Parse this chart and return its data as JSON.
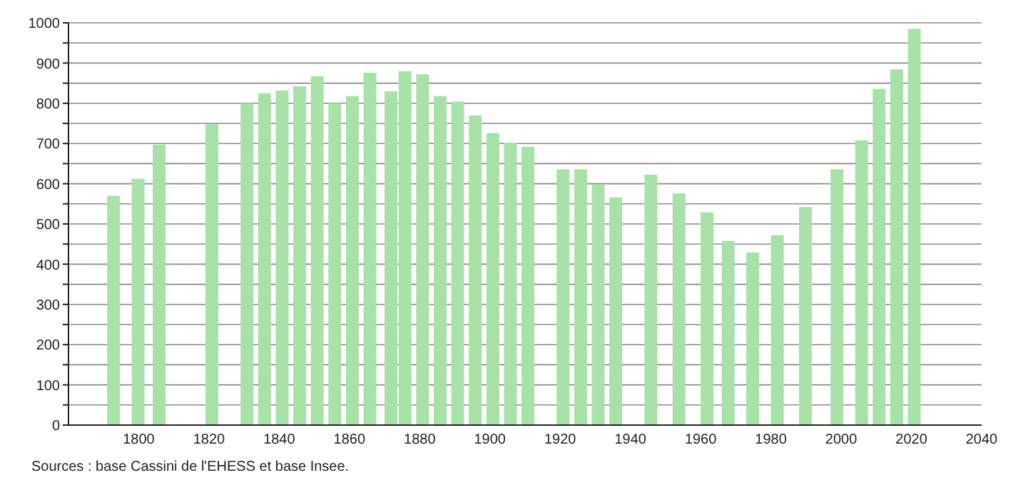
{
  "chart_data": {
    "type": "bar",
    "x": [
      1793,
      1800,
      1806,
      1821,
      1831,
      1836,
      1841,
      1846,
      1851,
      1856,
      1861,
      1866,
      1872,
      1876,
      1881,
      1886,
      1891,
      1896,
      1901,
      1906,
      1911,
      1921,
      1926,
      1931,
      1936,
      1946,
      1954,
      1962,
      1968,
      1975,
      1982,
      1990,
      1999,
      2006,
      2011,
      2016,
      2021
    ],
    "values": [
      570,
      612,
      697,
      748,
      800,
      825,
      832,
      842,
      867,
      800,
      818,
      876,
      830,
      880,
      872,
      818,
      804,
      770,
      726,
      702,
      692,
      636,
      636,
      598,
      566,
      623,
      576,
      529,
      458,
      429,
      472,
      542,
      636,
      708,
      836,
      884,
      985
    ],
    "color": "#a8e2a8",
    "xlim": [
      1780,
      2040
    ],
    "xticks": [
      1800,
      1820,
      1840,
      1860,
      1880,
      1900,
      1920,
      1940,
      1960,
      1980,
      2000,
      2020,
      2040
    ],
    "ylim": [
      0,
      1000
    ],
    "yticks": [
      0,
      {
        "value": 50,
        "label": null
      },
      100,
      {
        "value": 150,
        "label": null
      },
      200,
      {
        "value": 250,
        "label": null
      },
      300,
      {
        "value": 350,
        "label": null
      },
      400,
      {
        "value": 450,
        "label": null
      },
      500,
      {
        "value": 550,
        "label": null
      },
      600,
      {
        "value": 650,
        "label": null
      },
      700,
      {
        "value": 750,
        "label": null
      },
      800,
      {
        "value": 850,
        "label": null
      },
      900,
      {
        "value": 950,
        "label": null
      },
      1000
    ],
    "grid": "y",
    "annotations": [
      "Sources : base Cassini de l'EHESS et base Insee."
    ]
  }
}
